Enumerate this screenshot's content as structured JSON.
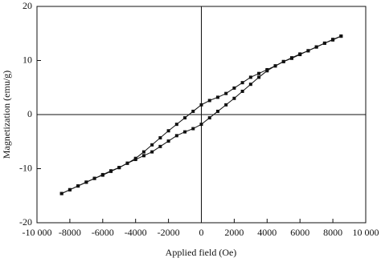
{
  "chart_data": {
    "type": "line",
    "x_label": "Applied field (Oe)",
    "y_label": "Magnetization (emu/g)",
    "xlim": [
      -10000,
      10000
    ],
    "ylim": [
      -20,
      20
    ],
    "xticks": [
      {
        "value": -10000,
        "label": "-10 000"
      },
      -8000,
      -6000,
      -4000,
      -2000,
      0,
      2000,
      4000,
      6000,
      8000,
      {
        "value": 10000,
        "label": "10 000"
      }
    ],
    "yticks": [
      -20,
      -10,
      0,
      10,
      20
    ],
    "zero_lines": true,
    "series": [
      {
        "color": "#111111",
        "x": [
          8500,
          8000,
          7500,
          7000,
          6500,
          6000,
          5500,
          5000,
          4500,
          4000,
          3500,
          3000,
          2500,
          2000,
          1500,
          1000,
          500,
          0,
          -500,
          -1000,
          -1500,
          -2000,
          -2500,
          -3000,
          -3500,
          -4000,
          -4500,
          -5000,
          -5500,
          -6000,
          -6500,
          -7000,
          -7500,
          -8000,
          -8500
        ],
        "values": [
          14.5,
          13.8,
          13.2,
          12.5,
          11.8,
          11.1,
          10.4,
          9.8,
          9.0,
          8.3,
          7.6,
          6.9,
          5.9,
          4.9,
          3.9,
          3.2,
          2.6,
          1.8,
          0.6,
          -0.6,
          -1.8,
          -3.0,
          -4.3,
          -5.6,
          -6.9,
          -8.1,
          -9.0,
          -9.8,
          -10.5,
          -11.2,
          -11.8,
          -12.5,
          -13.2,
          -13.9,
          -14.6
        ]
      },
      {
        "color": "#111111",
        "x": [
          -8500,
          -8000,
          -7500,
          -7000,
          -6500,
          -6000,
          -5500,
          -5000,
          -4500,
          -4000,
          -3500,
          -3000,
          -2500,
          -2000,
          -1500,
          -1000,
          -500,
          0,
          500,
          1000,
          1500,
          2000,
          2500,
          3000,
          3500,
          4000,
          4500,
          5000,
          5500,
          6000,
          6500,
          7000,
          7500,
          8000,
          8500
        ],
        "values": [
          -14.6,
          -13.9,
          -13.2,
          -12.5,
          -11.8,
          -11.1,
          -10.4,
          -9.8,
          -9.0,
          -8.3,
          -7.6,
          -6.9,
          -5.9,
          -4.9,
          -3.9,
          -3.2,
          -2.6,
          -1.8,
          -0.6,
          0.6,
          1.8,
          3.0,
          4.3,
          5.6,
          6.9,
          8.1,
          9.0,
          9.8,
          10.5,
          11.2,
          11.8,
          12.5,
          13.2,
          13.9,
          14.5
        ]
      }
    ]
  }
}
